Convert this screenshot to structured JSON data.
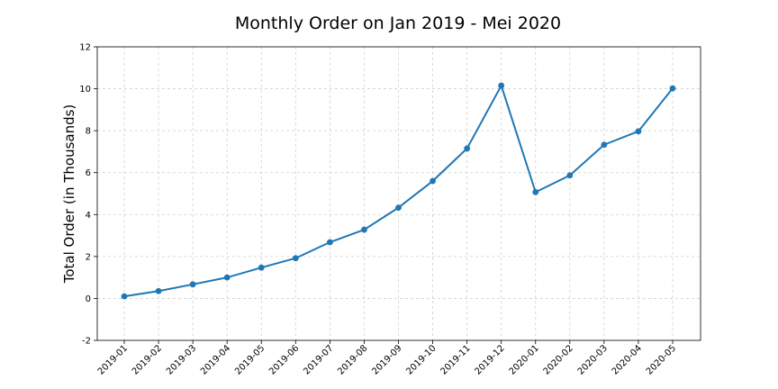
{
  "chart_data": {
    "type": "line",
    "title": "Monthly Order on Jan 2019 - Mei 2020",
    "xlabel": "",
    "ylabel": "Total Order (in Thousands)",
    "ylim": [
      -2,
      12
    ],
    "y_ticks": [
      "-2",
      "0",
      "2",
      "4",
      "6",
      "8",
      "10",
      "12"
    ],
    "grid": true,
    "legend": "none",
    "categories": [
      "2019-01",
      "2019-02",
      "2019-03",
      "2019-04",
      "2019-05",
      "2019-06",
      "2019-07",
      "2019-08",
      "2019-09",
      "2019-10",
      "2019-11",
      "2019-12",
      "2020-01",
      "2020-02",
      "2020-03",
      "2020-04",
      "2020-05"
    ],
    "series": [
      {
        "values": [
          0.1,
          0.35,
          0.67,
          1.0,
          1.47,
          1.92,
          2.68,
          3.28,
          4.33,
          5.6,
          7.15,
          10.15,
          5.07,
          5.87,
          7.33,
          7.97,
          10.02
        ],
        "color": "#1f77b4"
      }
    ]
  }
}
